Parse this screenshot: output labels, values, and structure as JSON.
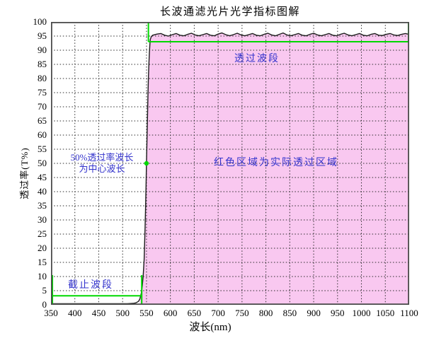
{
  "title": "长波通滤光片光学指标图解",
  "axes": {
    "xlabel": "波长(nm)",
    "ylabel": "透过率(T%)"
  },
  "annotations": {
    "cutoff_band": "截止波段",
    "pass_band": "透过波段",
    "red_area": "红色区域为实际透过区域",
    "center_wl_line1": "50%透过率波长",
    "center_wl_line2": "为中心波长"
  },
  "colors": {
    "region_pink": "#F9C8F0",
    "bracket_green": "#00D900",
    "annotation_blue": "#3333CC",
    "curve_black": "#1B1B1B"
  },
  "chart_data": {
    "type": "line",
    "title": "长波通滤光片光学指标图解",
    "xlabel": "波长(nm)",
    "ylabel": "透过率(T%)",
    "xlim": [
      350,
      1100
    ],
    "ylim": [
      0,
      100
    ],
    "xticks": [
      350,
      400,
      450,
      500,
      550,
      600,
      650,
      700,
      750,
      800,
      850,
      900,
      950,
      1000,
      1050,
      1100
    ],
    "yticks": [
      0,
      5,
      10,
      15,
      20,
      25,
      30,
      35,
      40,
      45,
      50,
      55,
      60,
      65,
      70,
      75,
      80,
      85,
      90,
      95,
      100
    ],
    "grid": true,
    "legend": false,
    "fill_from": 536,
    "markers": {
      "half_power_point": [
        550,
        50
      ]
    },
    "brackets": {
      "cutoff": {
        "x1": 353,
        "x2": 540,
        "y_line": 3.2,
        "y_bottom": 0,
        "y_top": 10.5
      },
      "pass": {
        "x1": 554,
        "x2": 1100,
        "y_line": 93,
        "y_top": 100
      }
    },
    "series": [
      {
        "name": "transmission",
        "points": [
          [
            350,
            0.4
          ],
          [
            420,
            0.4
          ],
          [
            480,
            0.4
          ],
          [
            510,
            0.4
          ],
          [
            522,
            0.5
          ],
          [
            528,
            0.7
          ],
          [
            533,
            1.2
          ],
          [
            536,
            2
          ],
          [
            539,
            4
          ],
          [
            541,
            6.5
          ],
          [
            543,
            10
          ],
          [
            545,
            16
          ],
          [
            546,
            21
          ],
          [
            547,
            27
          ],
          [
            548,
            34
          ],
          [
            549,
            42
          ],
          [
            550,
            50
          ],
          [
            551,
            58
          ],
          [
            552,
            66
          ],
          [
            553,
            74
          ],
          [
            554,
            80
          ],
          [
            555,
            85
          ],
          [
            556,
            89
          ],
          [
            557,
            92
          ],
          [
            558,
            93.8
          ],
          [
            560,
            94.8
          ],
          [
            563,
            95.3
          ],
          [
            572,
            95.7
          ],
          [
            580,
            95.9
          ],
          [
            588,
            95.3
          ],
          [
            596,
            95.0
          ],
          [
            604,
            95.5
          ],
          [
            612,
            95.9
          ],
          [
            620,
            95.3
          ],
          [
            628,
            95.1
          ],
          [
            636,
            95.6
          ],
          [
            644,
            96.0
          ],
          [
            652,
            95.4
          ],
          [
            660,
            95.1
          ],
          [
            668,
            95.5
          ],
          [
            676,
            95.9
          ],
          [
            684,
            95.3
          ],
          [
            692,
            95.1
          ],
          [
            700,
            95.7
          ],
          [
            708,
            96.1
          ],
          [
            716,
            95.5
          ],
          [
            724,
            95.1
          ],
          [
            732,
            95.5
          ],
          [
            740,
            96.0
          ],
          [
            748,
            95.4
          ],
          [
            756,
            95.1
          ],
          [
            764,
            95.5
          ],
          [
            772,
            95.9
          ],
          [
            780,
            95.3
          ],
          [
            788,
            95.1
          ],
          [
            796,
            95.6
          ],
          [
            804,
            96.0
          ],
          [
            812,
            95.4
          ],
          [
            820,
            95.1
          ],
          [
            828,
            95.6
          ],
          [
            836,
            96.1
          ],
          [
            844,
            95.4
          ],
          [
            852,
            95.1
          ],
          [
            860,
            95.5
          ],
          [
            868,
            95.9
          ],
          [
            876,
            95.3
          ],
          [
            884,
            95.1
          ],
          [
            892,
            95.6
          ],
          [
            900,
            96.0
          ],
          [
            908,
            95.4
          ],
          [
            916,
            95.1
          ],
          [
            924,
            95.5
          ],
          [
            932,
            95.9
          ],
          [
            940,
            95.3
          ],
          [
            948,
            95.1
          ],
          [
            956,
            95.6
          ],
          [
            964,
            96.0
          ],
          [
            972,
            95.4
          ],
          [
            980,
            95.1
          ],
          [
            988,
            95.5
          ],
          [
            996,
            95.9
          ],
          [
            1004,
            95.3
          ],
          [
            1012,
            95.1
          ],
          [
            1020,
            95.6
          ],
          [
            1028,
            95.9
          ],
          [
            1036,
            95.3
          ],
          [
            1044,
            95.2
          ],
          [
            1052,
            95.6
          ],
          [
            1060,
            95.9
          ],
          [
            1068,
            95.4
          ],
          [
            1076,
            95.2
          ],
          [
            1084,
            95.6
          ],
          [
            1092,
            95.9
          ],
          [
            1100,
            95.6
          ]
        ]
      }
    ]
  }
}
